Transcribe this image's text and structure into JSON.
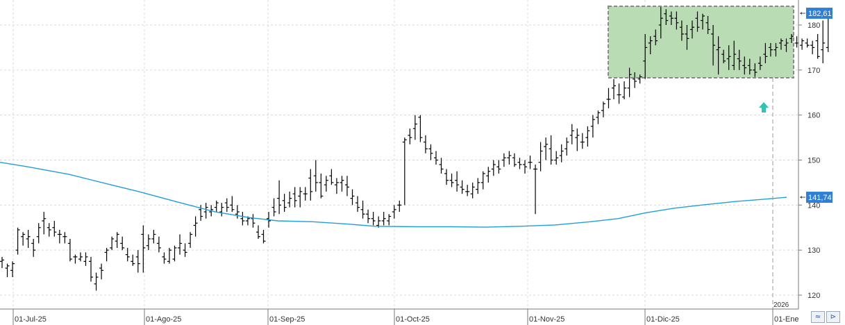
{
  "chart_data": {
    "type": "ohlc",
    "title": "",
    "xlabel": "",
    "ylabel": "",
    "ylim": [
      116.5,
      185.5
    ],
    "y_ticks": [
      120,
      130,
      140,
      150,
      160,
      170,
      180
    ],
    "x_labels": [
      "01-Jul-25",
      "01-Ago-25",
      "01-Sep-25",
      "01-Oct-25",
      "01-Nov-25",
      "01-Dic-25",
      "01-Ene"
    ],
    "year_marker": "2026",
    "last_price_label": "182,61",
    "ma_label": "141,74",
    "grid": true,
    "colors": {
      "bars": "#000000",
      "ma": "#1ea0d8",
      "box_fill": "#b9dcb5",
      "box_border": "#8a8a8a",
      "badge": "#2f7fd6",
      "arrow": "#2ec4b6"
    },
    "bars": [
      [
        127.5,
        128.5,
        126,
        127.8
      ],
      [
        126,
        127,
        124,
        126.5
      ],
      [
        125.5,
        127.5,
        124,
        127
      ],
      [
        130,
        135,
        129,
        134.5
      ],
      [
        133,
        134,
        131,
        133.5
      ],
      [
        132.5,
        134.5,
        130.5,
        133
      ],
      [
        131.5,
        132.5,
        128.5,
        130
      ],
      [
        133,
        136,
        131.5,
        135
      ],
      [
        136.5,
        138.5,
        133.5,
        137
      ],
      [
        135,
        136,
        133,
        134.5
      ],
      [
        135,
        136.5,
        133,
        134
      ],
      [
        133.5,
        134.5,
        131.5,
        133.5
      ],
      [
        133,
        134,
        131.5,
        133
      ],
      [
        131.5,
        132.5,
        127.5,
        128
      ],
      [
        128.5,
        129,
        127,
        128.5
      ],
      [
        128,
        129.5,
        127.5,
        128.5
      ],
      [
        127.5,
        129.5,
        126.5,
        128.5
      ],
      [
        127.5,
        128.5,
        123,
        124
      ],
      [
        122.5,
        125,
        121,
        124
      ],
      [
        126,
        127,
        123.5,
        125.5
      ],
      [
        129.5,
        130.5,
        127.5,
        130
      ],
      [
        130.5,
        133,
        130,
        132.5
      ],
      [
        132,
        134,
        130.5,
        133.5
      ],
      [
        131.5,
        133,
        130,
        130.5
      ],
      [
        129,
        130.5,
        127.5,
        128.5
      ],
      [
        127.5,
        129,
        126.5,
        127
      ],
      [
        128.5,
        130,
        125,
        127
      ],
      [
        133.5,
        135.5,
        125,
        130.5
      ],
      [
        131,
        133.5,
        130,
        132.5
      ],
      [
        132.5,
        134.5,
        131.5,
        133.5
      ],
      [
        131.5,
        133,
        129.5,
        130.5
      ],
      [
        128.5,
        129.5,
        127,
        128
      ],
      [
        127.5,
        130.5,
        127,
        130
      ],
      [
        128,
        131,
        127.5,
        130.5
      ],
      [
        130.5,
        133.5,
        129,
        131.5
      ],
      [
        130,
        131.5,
        128.5,
        129.5
      ],
      [
        131.5,
        134,
        130.5,
        133.5
      ],
      [
        135.5,
        137.5,
        133,
        136
      ],
      [
        139,
        140,
        136.5,
        137.5
      ],
      [
        138.5,
        140.5,
        137,
        139.5
      ],
      [
        138.5,
        140,
        137.5,
        139
      ],
      [
        139.5,
        141,
        138.5,
        140.5
      ],
      [
        138.5,
        140.5,
        137.5,
        139.5
      ],
      [
        140.5,
        141.5,
        138.5,
        139.5
      ],
      [
        140,
        142,
        138.5,
        139
      ],
      [
        138,
        140,
        137,
        138.5
      ],
      [
        137,
        138.5,
        135.5,
        136.5
      ],
      [
        136.5,
        137.5,
        135.5,
        137
      ],
      [
        137,
        138,
        135,
        136
      ],
      [
        134,
        135.5,
        132.5,
        133
      ],
      [
        133.5,
        134.5,
        131.5,
        132
      ],
      [
        137,
        138.5,
        135,
        136.5
      ],
      [
        139.5,
        141.5,
        137.5,
        138.5
      ],
      [
        141.5,
        145.5,
        138,
        140
      ],
      [
        141,
        142.5,
        138.5,
        139.5
      ],
      [
        140.5,
        143,
        139.5,
        141.5
      ],
      [
        142.5,
        144,
        139.5,
        141
      ],
      [
        142,
        144,
        139.5,
        143
      ],
      [
        142.5,
        144,
        141,
        142.5
      ],
      [
        146,
        148,
        141,
        143
      ],
      [
        146.5,
        150,
        143,
        145
      ],
      [
        145,
        147,
        141.5,
        142
      ],
      [
        144.5,
        146.5,
        143,
        145.5
      ],
      [
        146.5,
        148,
        144.5,
        145
      ],
      [
        144.5,
        146,
        142.5,
        145
      ],
      [
        145,
        146.5,
        143,
        145.5
      ],
      [
        144.5,
        146.5,
        142,
        144
      ],
      [
        141.5,
        143.5,
        140,
        142
      ],
      [
        140.5,
        142,
        138.5,
        139.5
      ],
      [
        139,
        141,
        137,
        138
      ],
      [
        138,
        139,
        136,
        137
      ],
      [
        137,
        138.5,
        135.5,
        136.5
      ],
      [
        135.5,
        137.5,
        135,
        136.5
      ],
      [
        136.5,
        138.5,
        135.5,
        137
      ],
      [
        136.5,
        138,
        135.5,
        137.5
      ],
      [
        138.5,
        140,
        137,
        139
      ],
      [
        140,
        141,
        138.5,
        140
      ],
      [
        154,
        155,
        140,
        154.5
      ],
      [
        155.5,
        157,
        153.5,
        155
      ],
      [
        157,
        160,
        154.5,
        158
      ],
      [
        159.5,
        160,
        154,
        155
      ],
      [
        154,
        155.5,
        151.5,
        152.5
      ],
      [
        152.5,
        153.5,
        150,
        151.5
      ],
      [
        150.5,
        152,
        149,
        150
      ],
      [
        149,
        150.5,
        147,
        148
      ],
      [
        147,
        148,
        144.5,
        145.5
      ],
      [
        145.5,
        147,
        144,
        145
      ],
      [
        145.5,
        147.5,
        143,
        144.5
      ],
      [
        144,
        145.5,
        142.5,
        143.5
      ],
      [
        143,
        144.5,
        142,
        143
      ],
      [
        142.5,
        145,
        141.5,
        144
      ],
      [
        143.5,
        146,
        142.5,
        145
      ],
      [
        145,
        147.5,
        143.5,
        147
      ],
      [
        146.5,
        148.5,
        145,
        147.5
      ],
      [
        148,
        150,
        146.5,
        149
      ],
      [
        148.5,
        150,
        147,
        148
      ],
      [
        150,
        151.5,
        148.5,
        150.5
      ],
      [
        150.5,
        152,
        149,
        151
      ],
      [
        150.5,
        151.5,
        148.5,
        149
      ],
      [
        149.5,
        150.5,
        148,
        149
      ],
      [
        149,
        150,
        147,
        148.5
      ],
      [
        149.5,
        151,
        148,
        149.5
      ],
      [
        148,
        149,
        138,
        148
      ],
      [
        149.5,
        154,
        147.5,
        152
      ],
      [
        153,
        155,
        150,
        153.5
      ],
      [
        152.5,
        155.5,
        149,
        150
      ],
      [
        150,
        152,
        149,
        150.5
      ],
      [
        151,
        153.5,
        149.5,
        152
      ],
      [
        152.5,
        155,
        151,
        154
      ],
      [
        155.5,
        158,
        153.5,
        156.5
      ],
      [
        155,
        157,
        152,
        155.5
      ],
      [
        154,
        156,
        152.5,
        154
      ],
      [
        155,
        157.5,
        153,
        156.5
      ],
      [
        157.5,
        160,
        155,
        159
      ],
      [
        159.5,
        161,
        158,
        160.5
      ],
      [
        161,
        163,
        159.5,
        162.5
      ],
      [
        163.5,
        166,
        161.5,
        163.5
      ],
      [
        166,
        168,
        163.5,
        166.5
      ],
      [
        164.5,
        167,
        162.5,
        164.5
      ],
      [
        164,
        167.5,
        163.5,
        166
      ],
      [
        166,
        170.5,
        164,
        169
      ],
      [
        168,
        169.5,
        166,
        167.5
      ],
      [
        168,
        169,
        167,
        168.5
      ],
      [
        172,
        178,
        168,
        175
      ],
      [
        176,
        177.5,
        173.5,
        176.5
      ],
      [
        177.5,
        179,
        175.5,
        176.5
      ],
      [
        180,
        184,
        177,
        181.5
      ],
      [
        182.5,
        183.5,
        180,
        181
      ],
      [
        182,
        183,
        180,
        181.5
      ],
      [
        181.5,
        183,
        179,
        180.5
      ],
      [
        179.5,
        181,
        176.5,
        178
      ],
      [
        178,
        180,
        174.5,
        177
      ],
      [
        179,
        181,
        177,
        179.5
      ],
      [
        181.5,
        183,
        178.5,
        179.5
      ],
      [
        181,
        182.5,
        179,
        182
      ],
      [
        180.5,
        182,
        178,
        179
      ],
      [
        178,
        180,
        171,
        175.5
      ],
      [
        174.5,
        177.5,
        169,
        175
      ],
      [
        173.5,
        174.5,
        171.5,
        172
      ],
      [
        172.5,
        175.5,
        170,
        173
      ],
      [
        171,
        176.5,
        170,
        173.5
      ],
      [
        172.5,
        174.5,
        170,
        172
      ],
      [
        171,
        173,
        169,
        170.5
      ],
      [
        171,
        172.5,
        169,
        170
      ],
      [
        170,
        171.5,
        168.5,
        169.5
      ],
      [
        171.5,
        173,
        170,
        171
      ],
      [
        173.5,
        176,
        171.5,
        173
      ],
      [
        175,
        176,
        173,
        174.5
      ],
      [
        174.5,
        176,
        173,
        175
      ],
      [
        176,
        177,
        174.5,
        176.5
      ],
      [
        175.5,
        177,
        174,
        176
      ],
      [
        177,
        178,
        176,
        177.5
      ],
      [
        176,
        177.5,
        175,
        176
      ],
      [
        175.5,
        177,
        174.5,
        176.5
      ],
      [
        176,
        177,
        175,
        175.5
      ],
      [
        175.5,
        176.5,
        173.5,
        175
      ],
      [
        176.5,
        178,
        172.5,
        173
      ],
      [
        174.5,
        181,
        171.5,
        176
      ],
      [
        175,
        183,
        174,
        182.6
      ]
    ],
    "ma_points": [
      [
        0,
        149.5
      ],
      [
        40,
        148.5
      ],
      [
        100,
        146.8
      ],
      [
        160,
        144.5
      ],
      [
        200,
        143
      ],
      [
        260,
        140.5
      ],
      [
        310,
        138.5
      ],
      [
        360,
        137.2
      ],
      [
        400,
        136.5
      ],
      [
        450,
        136.3
      ],
      [
        500,
        135.8
      ],
      [
        540,
        135.3
      ],
      [
        600,
        135.2
      ],
      [
        650,
        135.2
      ],
      [
        700,
        135.1
      ],
      [
        750,
        135.3
      ],
      [
        800,
        135.6
      ],
      [
        850,
        136.3
      ],
      [
        890,
        137
      ],
      [
        930,
        138.3
      ],
      [
        970,
        139.3
      ],
      [
        1010,
        140
      ],
      [
        1060,
        140.8
      ],
      [
        1100,
        141.3
      ],
      [
        1133,
        141.74
      ]
    ]
  },
  "toolbar": {
    "btn1": "≈",
    "btn2": "⊳"
  }
}
